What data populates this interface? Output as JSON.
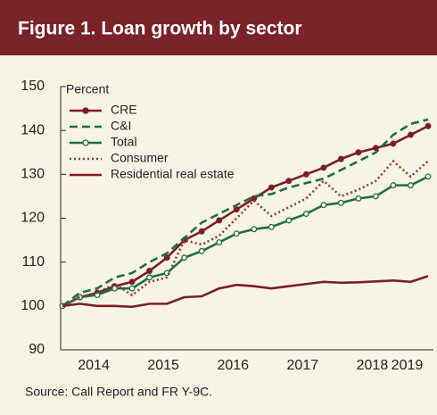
{
  "chart_data": {
    "type": "line",
    "title": "Figure 1. Loan growth by sector",
    "y_label": "Percent",
    "source": "Source: Call Report and FR Y-9C.",
    "categories": [
      null,
      null,
      "2014",
      null,
      null,
      null,
      "2015",
      null,
      null,
      null,
      "2016",
      null,
      null,
      null,
      "2017",
      null,
      null,
      null,
      "2018",
      null,
      "2019",
      null
    ],
    "ylim": [
      90,
      150
    ],
    "yticks": [
      90,
      100,
      110,
      120,
      130,
      140,
      150
    ],
    "legend": "upper left",
    "series": [
      {
        "name": "CRE",
        "color": "#7a1f24",
        "style": "solid-dot",
        "values": [
          100,
          102,
          103,
          104.5,
          105.5,
          108,
          111,
          115,
          117,
          119.5,
          122,
          124.5,
          127,
          128.5,
          130,
          131.5,
          133.5,
          135,
          136,
          137,
          139,
          141
        ]
      },
      {
        "name": "C&I",
        "color": "#1f6e43",
        "style": "dashed",
        "values": [
          100,
          103,
          104,
          106.5,
          107.5,
          110,
          112,
          115.5,
          119,
          121,
          123,
          125,
          125.5,
          127,
          128,
          129,
          131,
          133,
          135,
          139,
          141.5,
          142.5
        ]
      },
      {
        "name": "Total",
        "color": "#1f6e43",
        "style": "solid-open",
        "values": [
          100,
          102,
          102.5,
          104,
          104,
          106.5,
          107.5,
          111,
          112.5,
          114.5,
          116.5,
          117.5,
          118,
          119.5,
          121,
          123,
          123.5,
          124.5,
          125,
          127.5,
          127.5,
          129.5
        ]
      },
      {
        "name": "Consumer",
        "color": "#8b3a3a",
        "style": "dotted",
        "values": [
          100,
          102,
          103,
          105,
          102.5,
          105.5,
          106.5,
          115,
          114,
          116,
          120,
          124,
          120.5,
          122.5,
          124.5,
          128.5,
          125,
          126.5,
          128.5,
          133,
          129.5,
          133
        ]
      },
      {
        "name": "Residential real estate",
        "color": "#7a1f24",
        "style": "solid",
        "values": [
          100,
          100.5,
          100,
          100,
          99.8,
          100.5,
          100.5,
          102,
          102.2,
          104,
          104.8,
          104.5,
          104,
          104.5,
          105,
          105.5,
          105.3,
          105.4,
          105.6,
          105.8,
          105.5,
          106.8
        ]
      }
    ]
  }
}
